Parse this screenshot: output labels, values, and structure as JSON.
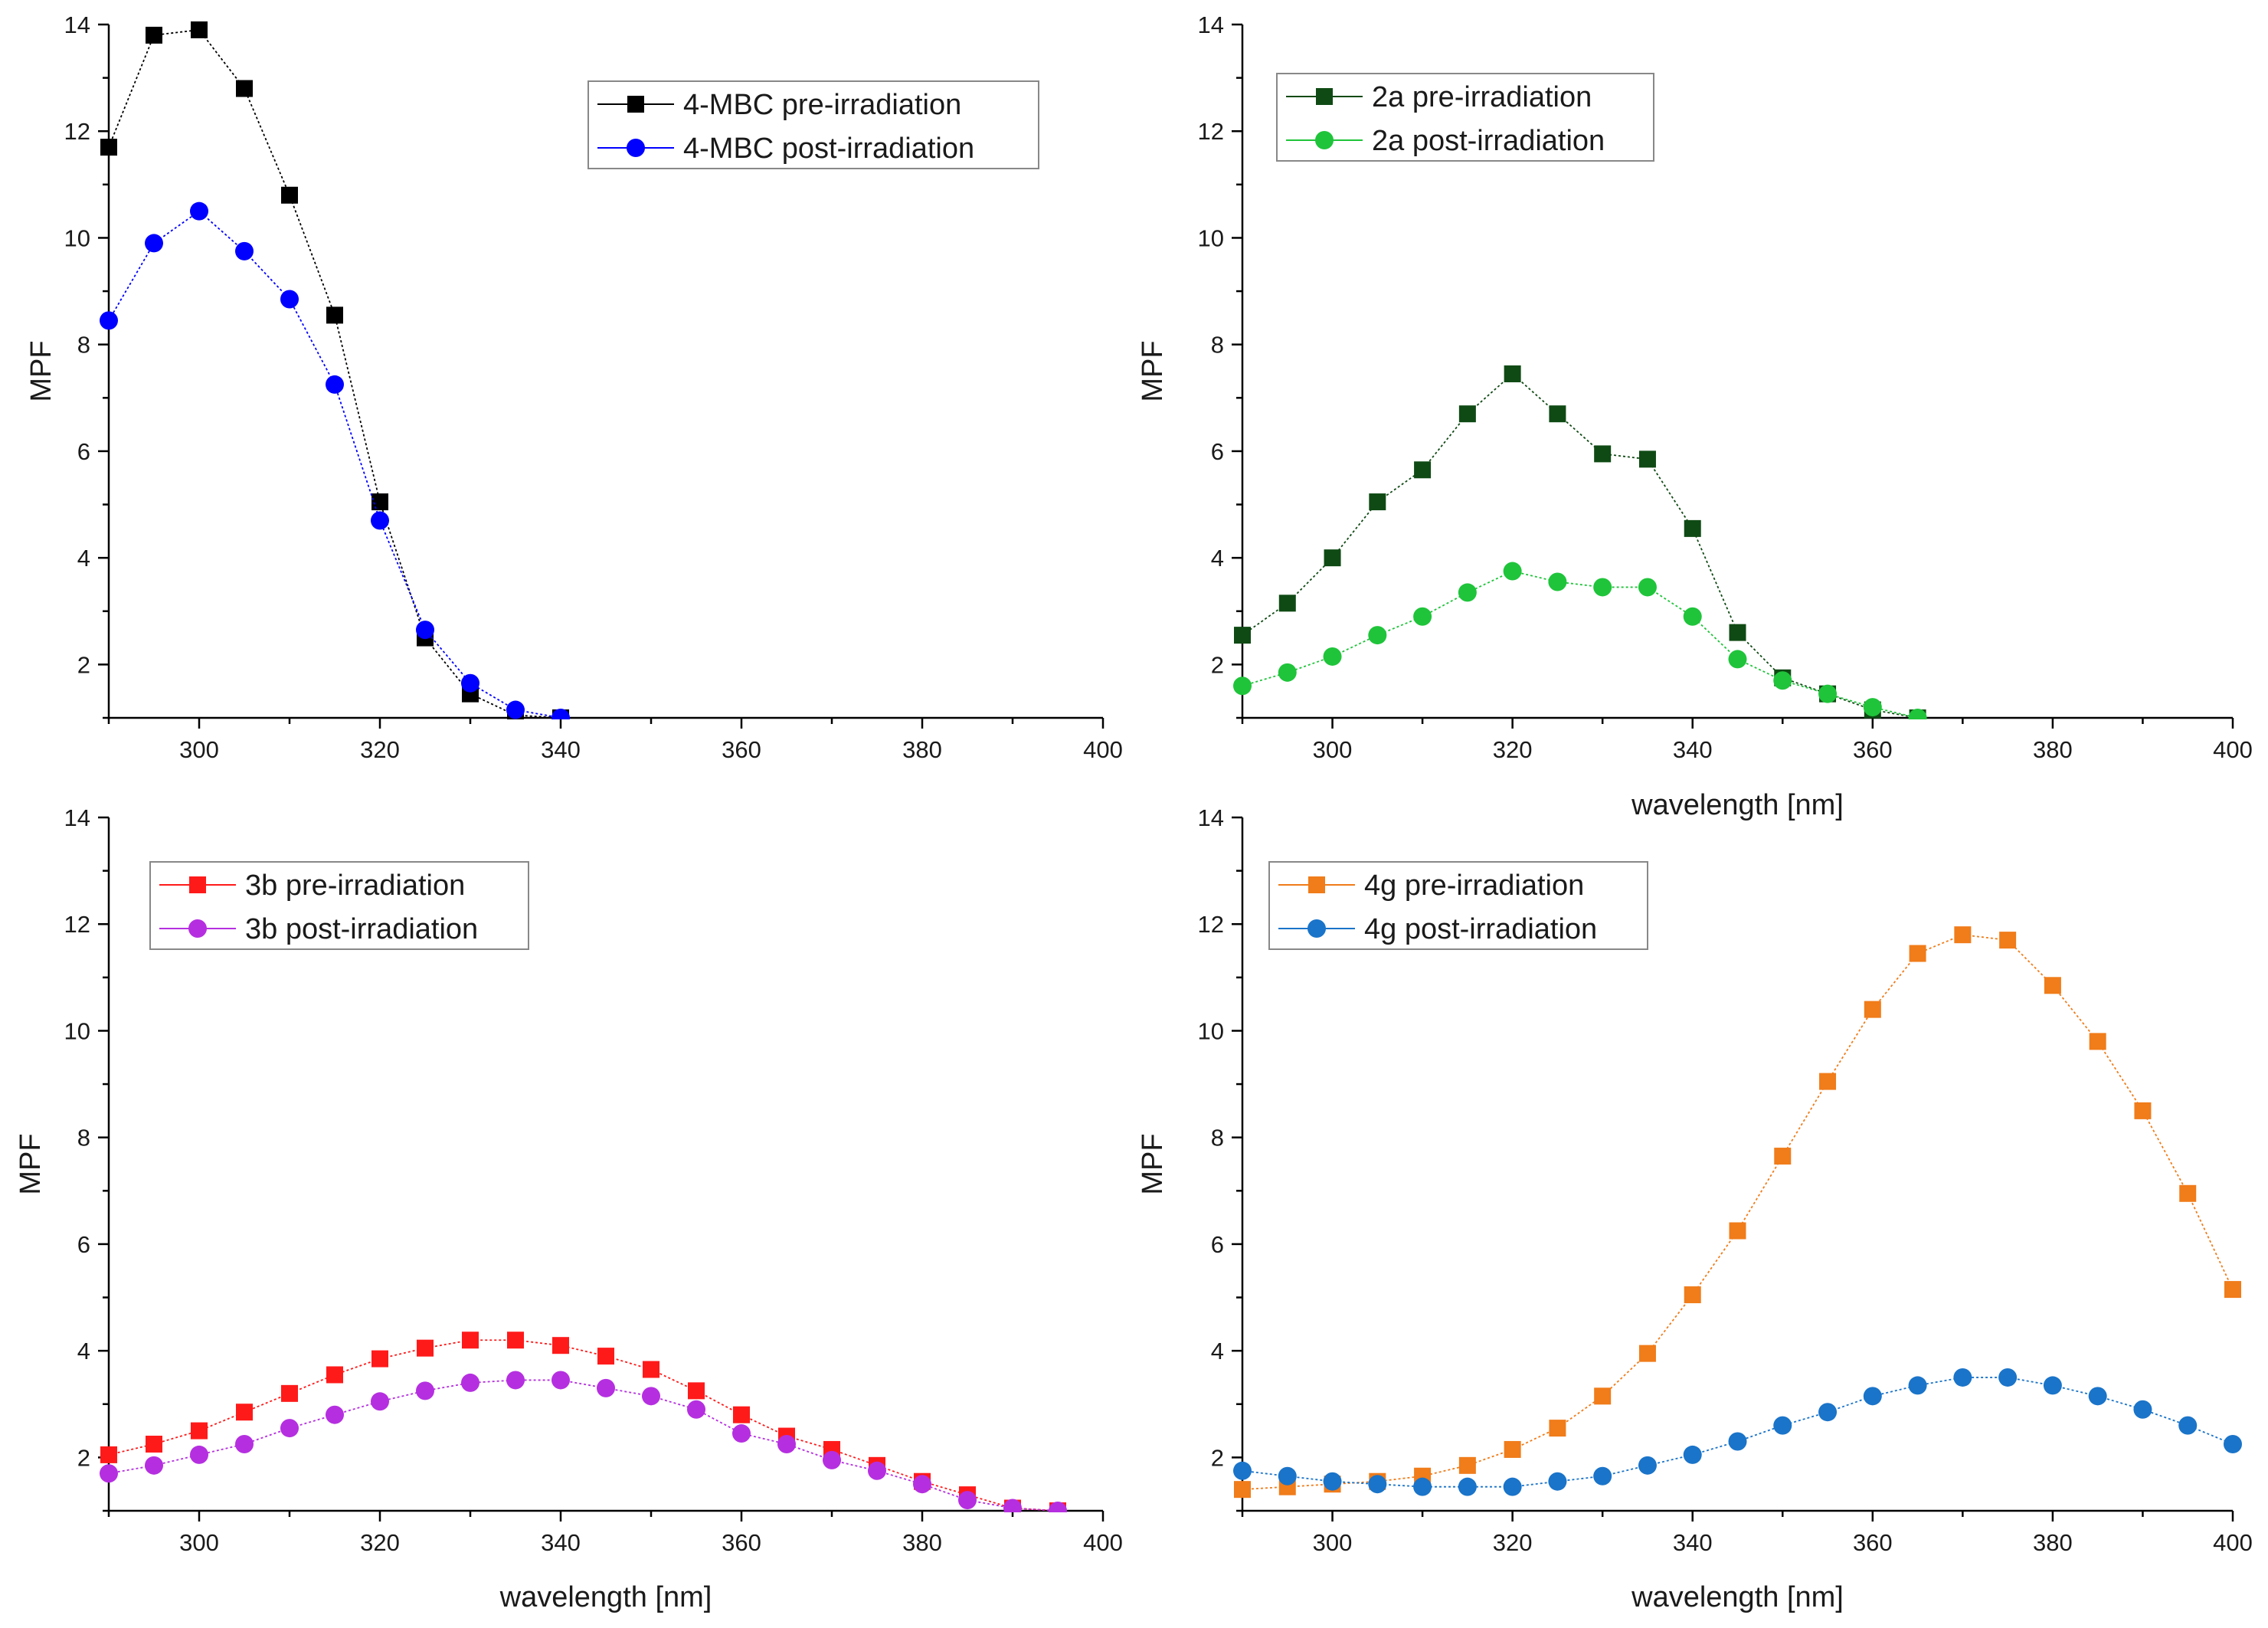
{
  "chart_data": [
    {
      "type": "line",
      "panel": "top-left",
      "xlabel": "",
      "ylabel": "MPF",
      "xlim": [
        290,
        400
      ],
      "ylim": [
        1,
        14
      ],
      "xticks": [
        300,
        320,
        340,
        360,
        380,
        400
      ],
      "yticks": [
        2,
        4,
        6,
        8,
        10,
        12,
        14
      ],
      "legend_position": "top-right",
      "series": [
        {
          "name": "4-MBC pre-irradiation",
          "color": "#000000",
          "marker": "square",
          "show_line": true,
          "x": [
            290,
            295,
            300,
            305,
            310,
            315,
            320,
            325,
            330,
            335,
            340
          ],
          "values": [
            11.7,
            13.8,
            13.9,
            12.8,
            10.8,
            8.55,
            5.05,
            2.5,
            1.45,
            1.05,
            1.0
          ]
        },
        {
          "name": "4-MBC post-irradiation",
          "color": "#0000ff",
          "marker": "circle",
          "show_line": true,
          "x": [
            290,
            295,
            300,
            305,
            310,
            315,
            320,
            325,
            330,
            335,
            340
          ],
          "values": [
            8.45,
            9.9,
            10.5,
            9.75,
            8.85,
            7.25,
            4.7,
            2.65,
            1.65,
            1.15,
            1.0
          ]
        }
      ]
    },
    {
      "type": "line",
      "panel": "top-right",
      "xlabel": "wavelength [nm]",
      "ylabel": "MPF",
      "xlim": [
        290,
        400
      ],
      "ylim": [
        1,
        14
      ],
      "xticks": [
        300,
        320,
        340,
        360,
        380,
        400
      ],
      "yticks": [
        2,
        4,
        6,
        8,
        10,
        12,
        14
      ],
      "legend_position": "top-left",
      "series": [
        {
          "name": "2a pre-irradiation",
          "color": "#0f4a14",
          "marker": "square",
          "show_line": true,
          "x": [
            290,
            295,
            300,
            305,
            310,
            315,
            320,
            325,
            330,
            335,
            340,
            345,
            350,
            355,
            360,
            365
          ],
          "values": [
            2.55,
            3.15,
            4.0,
            5.05,
            5.65,
            6.7,
            7.45,
            6.7,
            5.95,
            5.85,
            4.55,
            2.6,
            1.75,
            1.45,
            1.15,
            1.0
          ]
        },
        {
          "name": "2a post-irradiation",
          "color": "#1fc43a",
          "marker": "circle",
          "show_line": true,
          "x": [
            290,
            295,
            300,
            305,
            310,
            315,
            320,
            325,
            330,
            335,
            340,
            345,
            350,
            355,
            360,
            365
          ],
          "values": [
            1.6,
            1.85,
            2.15,
            2.55,
            2.9,
            3.35,
            3.75,
            3.55,
            3.45,
            3.45,
            2.9,
            2.1,
            1.7,
            1.45,
            1.2,
            1.0
          ]
        }
      ]
    },
    {
      "type": "line",
      "panel": "bottom-left",
      "xlabel": "wavelength [nm]",
      "ylabel": "MPF",
      "xlim": [
        290,
        400
      ],
      "ylim": [
        1,
        14
      ],
      "xticks": [
        300,
        320,
        340,
        360,
        380,
        400
      ],
      "yticks": [
        2,
        4,
        6,
        8,
        10,
        12,
        14
      ],
      "legend_position": "top-left",
      "series": [
        {
          "name": "3b pre-irradiation",
          "color": "#ff1a1a",
          "marker": "square",
          "show_line": true,
          "x": [
            290,
            295,
            300,
            305,
            310,
            315,
            320,
            325,
            330,
            335,
            340,
            345,
            350,
            355,
            360,
            365,
            370,
            375,
            380,
            385,
            390,
            395
          ],
          "values": [
            2.05,
            2.25,
            2.5,
            2.85,
            3.2,
            3.55,
            3.85,
            4.05,
            4.2,
            4.2,
            4.1,
            3.9,
            3.65,
            3.25,
            2.8,
            2.4,
            2.15,
            1.85,
            1.55,
            1.3,
            1.05,
            1.0
          ]
        },
        {
          "name": "3b post-irradiation",
          "color": "#b52fe0",
          "marker": "circle",
          "show_line": true,
          "x": [
            290,
            295,
            300,
            305,
            310,
            315,
            320,
            325,
            330,
            335,
            340,
            345,
            350,
            355,
            360,
            365,
            370,
            375,
            380,
            385,
            390,
            395
          ],
          "values": [
            1.7,
            1.85,
            2.05,
            2.25,
            2.55,
            2.8,
            3.05,
            3.25,
            3.4,
            3.45,
            3.45,
            3.3,
            3.15,
            2.9,
            2.45,
            2.25,
            1.95,
            1.75,
            1.5,
            1.2,
            1.05,
            1.0
          ]
        }
      ]
    },
    {
      "type": "line",
      "panel": "bottom-right",
      "xlabel": "wavelength [nm]",
      "ylabel": "MPF",
      "xlim": [
        290,
        400
      ],
      "ylim": [
        1,
        14
      ],
      "xticks": [
        300,
        320,
        340,
        360,
        380,
        400
      ],
      "yticks": [
        2,
        4,
        6,
        8,
        10,
        12,
        14
      ],
      "legend_position": "top-left",
      "series": [
        {
          "name": "4g pre-irradiation",
          "color": "#f07c1a",
          "marker": "square",
          "show_line": true,
          "x": [
            290,
            295,
            300,
            305,
            310,
            315,
            320,
            325,
            330,
            335,
            340,
            345,
            350,
            355,
            360,
            365,
            370,
            375,
            380,
            385,
            390,
            395,
            400
          ],
          "values": [
            1.4,
            1.45,
            1.5,
            1.55,
            1.65,
            1.85,
            2.15,
            2.55,
            3.15,
            3.95,
            5.05,
            6.25,
            7.65,
            9.05,
            10.4,
            11.45,
            11.8,
            11.7,
            10.85,
            9.8,
            8.5,
            6.95,
            5.15
          ]
        },
        {
          "name": "4g post-irradiation",
          "color": "#1a74c9",
          "marker": "circle",
          "show_line": true,
          "x": [
            290,
            295,
            300,
            305,
            310,
            315,
            320,
            325,
            330,
            335,
            340,
            345,
            350,
            355,
            360,
            365,
            370,
            375,
            380,
            385,
            390,
            395,
            400
          ],
          "values": [
            1.75,
            1.65,
            1.55,
            1.5,
            1.45,
            1.45,
            1.45,
            1.55,
            1.65,
            1.85,
            2.05,
            2.3,
            2.6,
            2.85,
            3.15,
            3.35,
            3.5,
            3.5,
            3.35,
            3.15,
            2.9,
            2.6,
            2.25
          ]
        }
      ]
    }
  ]
}
